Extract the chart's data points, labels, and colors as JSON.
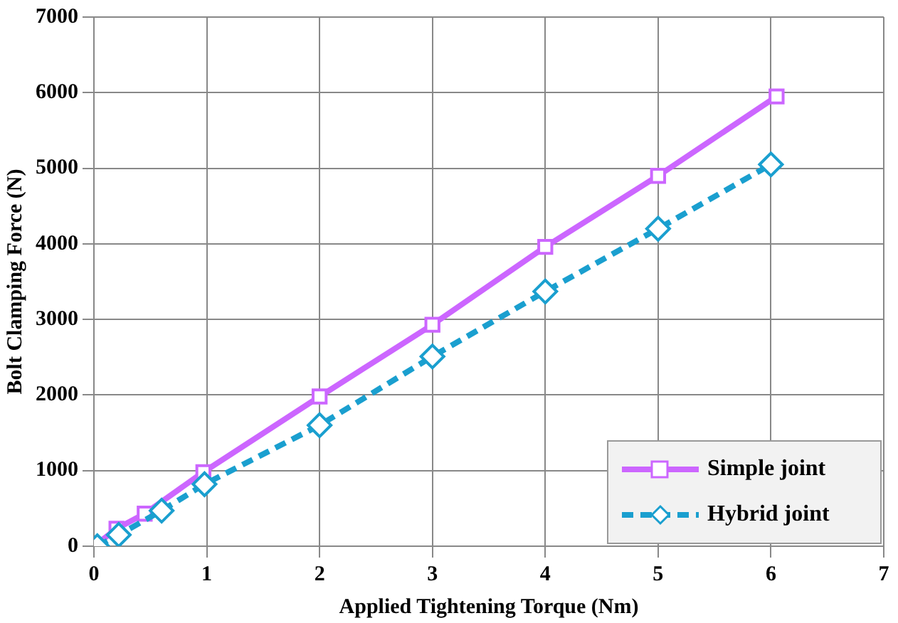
{
  "chart_data": {
    "type": "line",
    "xlabel": "Applied Tightening Torque (Nm)",
    "ylabel": "Bolt Clamping Force (N)",
    "xlim": [
      0,
      7
    ],
    "xticks": [
      0,
      1,
      2,
      3,
      4,
      5,
      6,
      7
    ],
    "ylim": [
      0,
      7000
    ],
    "yticks": [
      0,
      1000,
      2000,
      3000,
      4000,
      5000,
      6000,
      7000
    ],
    "grid": true,
    "legend": "bottom right",
    "series": [
      {
        "name": "Simple joint",
        "color": "#cc66ff",
        "marker": "square",
        "line_style": "solid",
        "x": [
          0,
          0.2,
          0.45,
          0.97,
          2,
          3,
          4,
          5,
          6.05
        ],
        "values": [
          0,
          230,
          430,
          980,
          1980,
          2930,
          3960,
          4900,
          5950
        ]
      },
      {
        "name": "Hybrid joint",
        "color": "#1a9fcf",
        "marker": "diamond",
        "line_style": "dashed",
        "x": [
          0.03,
          0.22,
          0.6,
          0.98,
          2,
          3,
          4,
          5,
          6
        ],
        "values": [
          0,
          150,
          470,
          820,
          1600,
          2510,
          3370,
          4200,
          5050
        ]
      }
    ]
  }
}
